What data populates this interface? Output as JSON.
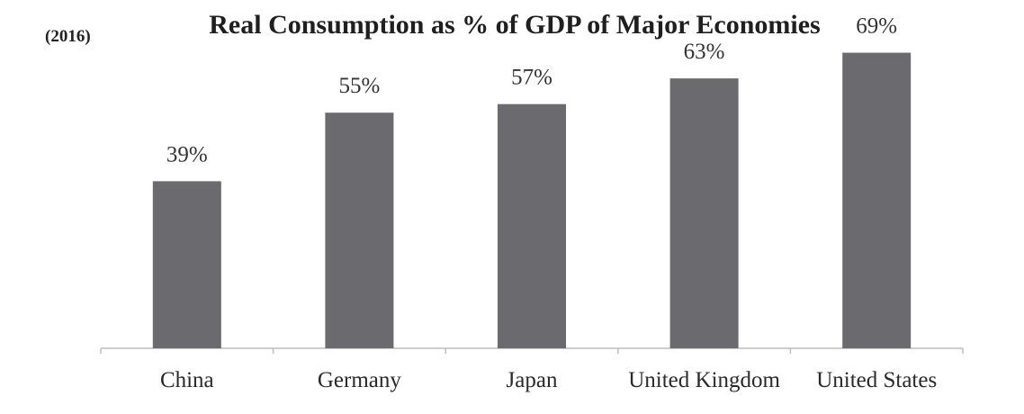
{
  "chart_data": {
    "type": "bar",
    "title": "Real Consumption as % of GDP of Major Economies",
    "subtitle": "(2016)",
    "xlabel": "",
    "ylabel": "",
    "categories": [
      "China",
      "Germany",
      "Japan",
      "United Kingdom",
      "United States"
    ],
    "values": [
      39,
      55,
      57,
      63,
      69
    ],
    "data_labels": [
      "39%",
      "55%",
      "57%",
      "63%",
      "69%"
    ],
    "unit": "%",
    "ylim": [
      0,
      75
    ],
    "grid": false,
    "legend": "none",
    "bar_color": "#6b6b6f",
    "axis_color": "#bdbdbd"
  }
}
